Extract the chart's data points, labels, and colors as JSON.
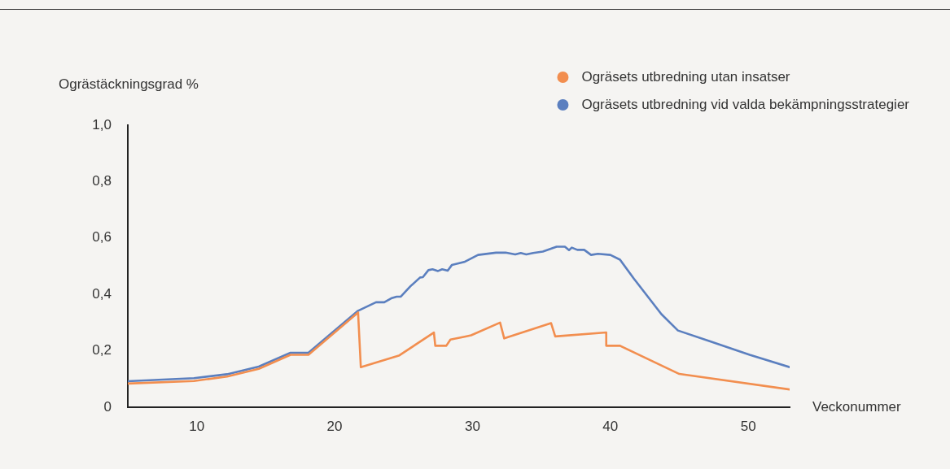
{
  "chart_data": {
    "type": "line",
    "ylabel": "Ogrästäckningsgrad %",
    "xlabel": "Veckonummer",
    "xlim": [
      5,
      53
    ],
    "xticks": [
      10,
      20,
      30,
      40,
      50
    ],
    "ylim": [
      0,
      1
    ],
    "yticks": [
      {
        "value": 0,
        "label": "0"
      },
      {
        "value": 0.2,
        "label": "0,2"
      },
      {
        "value": 0.4,
        "label": "0,4"
      },
      {
        "value": 0.6,
        "label": "0,6"
      },
      {
        "value": 0.8,
        "label": "0,8"
      },
      {
        "value": 1,
        "label": "1,0"
      }
    ],
    "legend": "top right",
    "marker": "none",
    "line_style": "solid",
    "series": [
      {
        "name": "Ogräsets utbredning utan insatser",
        "color": "#f28e4f",
        "x": [
          5,
          9.8,
          12.2,
          14.5,
          16.8,
          18.1,
          21.7,
          21.9,
          24.7,
          27.2,
          27.3,
          28.1,
          28.4,
          29.5,
          29.9,
          32.0,
          32.3,
          35.7,
          36.0,
          39.7,
          39.7,
          40.7,
          45.0,
          53
        ],
        "values": [
          0.084,
          0.093,
          0.109,
          0.136,
          0.186,
          0.186,
          0.336,
          0.142,
          0.184,
          0.265,
          0.218,
          0.218,
          0.24,
          0.251,
          0.255,
          0.3,
          0.244,
          0.298,
          0.251,
          0.265,
          0.218,
          0.218,
          0.118,
          0.063
        ]
      },
      {
        "name": "Ogräsets utbredning vid valda bekämpningsstrategier",
        "color": "#5b7fbf",
        "x": [
          5,
          9.8,
          12.2,
          14.5,
          16.8,
          18.1,
          21.7,
          23.0,
          23.6,
          24.1,
          24.5,
          24.8,
          25.5,
          26.2,
          26.4,
          26.8,
          27.1,
          27.5,
          27.8,
          28.2,
          28.5,
          29.4,
          30.4,
          31.7,
          32.4,
          33.1,
          33.5,
          33.9,
          34.4,
          35.1,
          36.1,
          36.7,
          37.0,
          37.2,
          37.6,
          38.1,
          38.6,
          39.1,
          40.0,
          40.7,
          41.7,
          43.7,
          44.9,
          47.2,
          50.1,
          53
        ],
        "values": [
          0.092,
          0.103,
          0.117,
          0.144,
          0.193,
          0.193,
          0.342,
          0.372,
          0.372,
          0.386,
          0.392,
          0.392,
          0.429,
          0.46,
          0.461,
          0.486,
          0.489,
          0.483,
          0.489,
          0.484,
          0.504,
          0.515,
          0.54,
          0.548,
          0.548,
          0.542,
          0.547,
          0.542,
          0.547,
          0.552,
          0.569,
          0.569,
          0.557,
          0.566,
          0.558,
          0.558,
          0.54,
          0.544,
          0.54,
          0.523,
          0.456,
          0.33,
          0.272,
          0.234,
          0.186,
          0.142
        ]
      }
    ]
  }
}
